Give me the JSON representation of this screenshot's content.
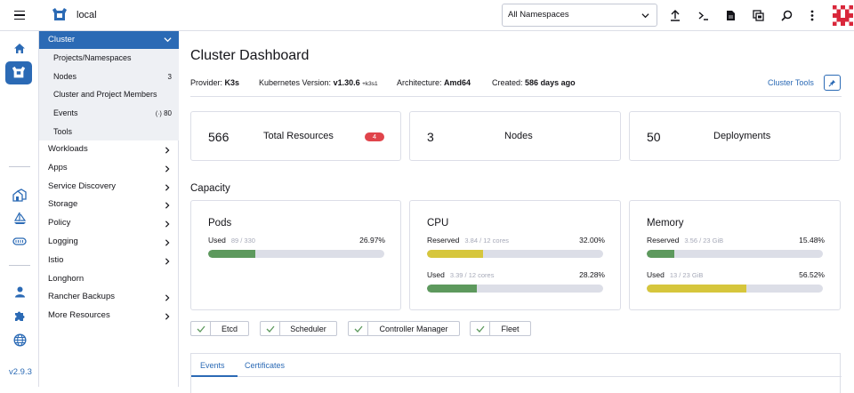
{
  "topbar": {
    "cluster_name": "local",
    "namespace_select": "All Namespaces",
    "icons": [
      "menu-icon",
      "kube-icon",
      "import-yaml-icon",
      "kubectl-shell-icon",
      "kubeconfig-file-icon",
      "copy-kubeconfig-icon",
      "search-icon",
      "more-vert-icon",
      "user-avatar"
    ]
  },
  "rail": {
    "icons": [
      "home-icon",
      "cluster-explorer-icon",
      "cluster-management-icon",
      "apps-sail-icon",
      "fleet-icon",
      "users-icon",
      "extensions-icon",
      "global-settings-icon"
    ],
    "version": "v2.9.3"
  },
  "sidenav": {
    "group": "Cluster",
    "subitems": [
      {
        "label": "Projects/Namespaces",
        "count": ""
      },
      {
        "label": "Nodes",
        "count": "3"
      },
      {
        "label": "Cluster and Project Members",
        "count": ""
      },
      {
        "label": "Events",
        "count": "80"
      },
      {
        "label": "Tools",
        "count": ""
      }
    ],
    "items": [
      {
        "label": "Workloads",
        "chevron": true
      },
      {
        "label": "Apps",
        "chevron": true
      },
      {
        "label": "Service Discovery",
        "chevron": true
      },
      {
        "label": "Storage",
        "chevron": true
      },
      {
        "label": "Policy",
        "chevron": true
      },
      {
        "label": "Logging",
        "chevron": true
      },
      {
        "label": "Istio",
        "chevron": true
      },
      {
        "label": "Longhorn",
        "chevron": false
      },
      {
        "label": "Rancher Backups",
        "chevron": true
      },
      {
        "label": "More Resources",
        "chevron": true
      }
    ]
  },
  "main": {
    "title": "Cluster Dashboard",
    "meta": {
      "provider_label": "Provider:",
      "provider": "K3s",
      "k8s_label": "Kubernetes Version:",
      "k8s": "v1.30.6",
      "k8s_suffix": "+k3s1",
      "arch_label": "Architecture:",
      "arch": "Amd64",
      "created_label": "Created:",
      "created": "586 days ago"
    },
    "cluster_tools": "Cluster Tools",
    "summary": [
      {
        "value": "566",
        "label": "Total Resources",
        "badge": "4"
      },
      {
        "value": "3",
        "label": "Nodes"
      },
      {
        "value": "50",
        "label": "Deployments"
      }
    ],
    "capacity_title": "Capacity",
    "capacity": {
      "pods": {
        "title": "Pods",
        "rows": [
          {
            "label": "Used",
            "sub": "89 / 330",
            "pct": "26.97%",
            "fraction": 0.2697,
            "color": "#5d995d"
          }
        ]
      },
      "cpu": {
        "title": "CPU",
        "rows": [
          {
            "label": "Reserved",
            "sub": "3.84 / 12 cores",
            "pct": "32.00%",
            "fraction": 0.32,
            "color": "#d6c63c"
          },
          {
            "label": "Used",
            "sub": "3.39 / 12 cores",
            "pct": "28.28%",
            "fraction": 0.2828,
            "color": "#5d995d"
          }
        ]
      },
      "memory": {
        "title": "Memory",
        "rows": [
          {
            "label": "Reserved",
            "sub": "3.56 / 23 GiB",
            "pct": "15.48%",
            "fraction": 0.1548,
            "color": "#5d995d"
          },
          {
            "label": "Used",
            "sub": "13 / 23 GiB",
            "pct": "56.52%",
            "fraction": 0.5652,
            "color": "#d6c63c"
          }
        ]
      }
    },
    "services": [
      "Etcd",
      "Scheduler",
      "Controller Manager",
      "Fleet"
    ],
    "tabs": [
      "Events",
      "Certificates"
    ]
  }
}
